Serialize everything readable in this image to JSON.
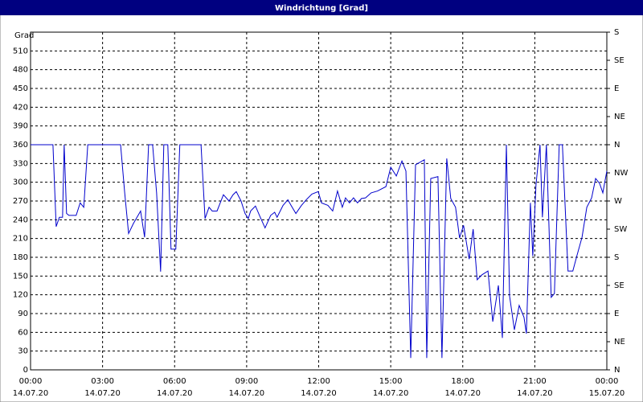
{
  "window_title": "Windrichtung [Grad]",
  "chart_data": {
    "type": "line",
    "ylabel": "Grad",
    "x": [
      0,
      56,
      64,
      72,
      80,
      84,
      90,
      96,
      114,
      124,
      133,
      143,
      225,
      235,
      245,
      257,
      275,
      285,
      295,
      305,
      315,
      325,
      333,
      343,
      351,
      363,
      373,
      426,
      436,
      446,
      454,
      466,
      482,
      496,
      506,
      514,
      526,
      536,
      544,
      550,
      562,
      574,
      586,
      600,
      610,
      616,
      631,
      643,
      651,
      663,
      677,
      689,
      703,
      719,
      727,
      743,
      755,
      767,
      779,
      787,
      797,
      807,
      817,
      827,
      837,
      851,
      867,
      888,
      900,
      914,
      928,
      938,
      950,
      962,
      984,
      990,
      1000,
      1018,
      1028,
      1040,
      1050,
      1062,
      1072,
      1082,
      1096,
      1106,
      1116,
      1128,
      1143,
      1155,
      1169,
      1179,
      1189,
      1197,
      1209,
      1221,
      1233,
      1239,
      1249,
      1255,
      1263,
      1273,
      1279,
      1289,
      1301,
      1309,
      1321,
      1329,
      1343,
      1355,
      1365,
      1378,
      1390,
      1402,
      1412,
      1422,
      1430,
      1440
    ],
    "series": [
      {
        "name": "Windrichtung",
        "color": "#0000cc",
        "values": [
          360,
          360,
          229,
          244,
          244,
          360,
          250,
          247,
          247,
          267,
          260,
          360,
          360,
          285,
          218,
          234,
          254,
          212,
          360,
          360,
          283,
          157,
          360,
          360,
          193,
          193,
          360,
          360,
          242,
          260,
          254,
          254,
          280,
          270,
          280,
          285,
          270,
          250,
          242,
          254,
          262,
          244,
          227,
          247,
          252,
          244,
          263,
          272,
          263,
          250,
          263,
          272,
          281,
          285,
          267,
          263,
          254,
          286,
          260,
          275,
          267,
          275,
          267,
          274,
          275,
          283,
          286,
          293,
          324,
          310,
          334,
          318,
          19,
          328,
          336,
          19,
          306,
          309,
          19,
          338,
          274,
          260,
          211,
          231,
          177,
          225,
          144,
          152,
          158,
          77,
          135,
          51,
          360,
          118,
          64,
          103,
          84,
          58,
          267,
          182,
          296,
          360,
          244,
          360,
          116,
          122,
          360,
          360,
          158,
          158,
          182,
          212,
          260,
          275,
          306,
          298,
          283,
          318
        ]
      }
    ],
    "xlim": [
      0,
      1440
    ],
    "xticks": [
      {
        "value": 0,
        "label": "00:00"
      },
      {
        "value": 180,
        "label": "03:00"
      },
      {
        "value": 360,
        "label": "06:00"
      },
      {
        "value": 540,
        "label": "09:00"
      },
      {
        "value": 720,
        "label": "12:00"
      },
      {
        "value": 900,
        "label": "15:00"
      },
      {
        "value": 1080,
        "label": "18:00"
      },
      {
        "value": 1260,
        "label": "21:00"
      },
      {
        "value": 1440,
        "label": "00:00"
      }
    ],
    "xtick_dates": [
      "14.07.20",
      "14.07.20",
      "14.07.20",
      "14.07.20",
      "14.07.20",
      "14.07.20",
      "14.07.20",
      "14.07.20",
      "15.07.20"
    ],
    "ylim": [
      0,
      540
    ],
    "yticks": [
      0,
      30,
      60,
      90,
      120,
      150,
      180,
      210,
      240,
      270,
      300,
      330,
      360,
      390,
      420,
      450,
      480,
      510
    ],
    "y2lim": [
      0,
      540
    ],
    "y2ticks": [
      {
        "value": 0,
        "label": "N"
      },
      {
        "value": 45,
        "label": "NE"
      },
      {
        "value": 90,
        "label": "E"
      },
      {
        "value": 135,
        "label": "SE"
      },
      {
        "value": 180,
        "label": "S"
      },
      {
        "value": 225,
        "label": "SW"
      },
      {
        "value": 270,
        "label": "W"
      },
      {
        "value": 315,
        "label": "NW"
      },
      {
        "value": 360,
        "label": "N"
      },
      {
        "value": 405,
        "label": "NE"
      },
      {
        "value": 450,
        "label": "E"
      },
      {
        "value": 495,
        "label": "SE"
      },
      {
        "value": 540,
        "label": "S"
      }
    ],
    "grid": true
  }
}
